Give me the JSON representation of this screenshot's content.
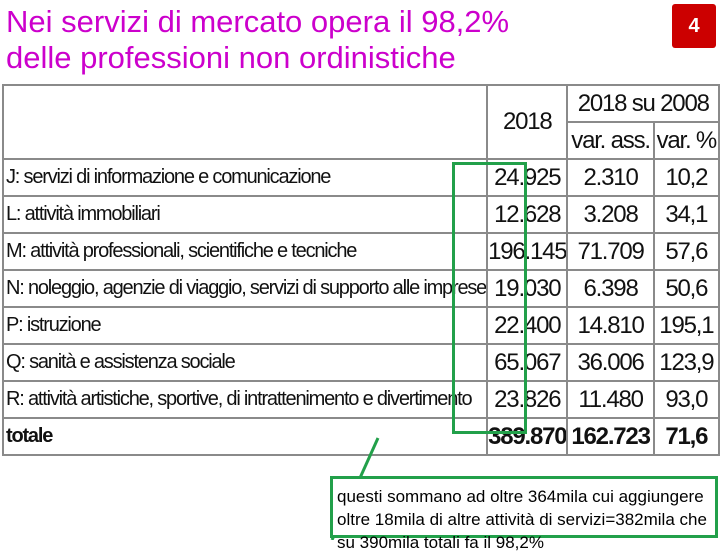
{
  "header": {
    "title_line1": "Nei servizi di mercato opera il 98,2%",
    "title_line2": "delle professioni non ordinistiche",
    "page_number": "4"
  },
  "table": {
    "col_year": "2018",
    "col_group": "2018 su 2008",
    "col_abs": "var. ass.",
    "col_pct": "var. %",
    "rows": [
      {
        "label": "J: servizi di informazione e comunicazione",
        "v2018": "24.925",
        "abs": "2.310",
        "pct": "10,2"
      },
      {
        "label": "L: attività immobiliari",
        "v2018": "12.628",
        "abs": "3.208",
        "pct": "34,1"
      },
      {
        "label": "M: attività professionali, scientifiche e tecniche",
        "v2018": "196.145",
        "abs": "71.709",
        "pct": "57,6"
      },
      {
        "label": "N: noleggio, agenzie di viaggio, servizi di supporto alle imprese",
        "v2018": "19.030",
        "abs": "6.398",
        "pct": "50,6"
      },
      {
        "label": "P: istruzione",
        "v2018": "22.400",
        "abs": "14.810",
        "pct": "195,1"
      },
      {
        "label": "Q: sanità e assistenza sociale",
        "v2018": "65.067",
        "abs": "36.006",
        "pct": "123,9"
      },
      {
        "label": "R: attività artistiche, sportive, di intrattenimento e divertimento",
        "v2018": "23.826",
        "abs": "11.480",
        "pct": "93,0"
      }
    ],
    "total": {
      "label": "totale",
      "v2018": "389.870",
      "abs": "162.723",
      "pct": "71,6"
    }
  },
  "note": {
    "text": "questi sommano ad oltre 364mila cui aggiungere oltre 18mila di altre attività di servizi=382mila che su 390mila totali fa il 98,2%"
  },
  "colors": {
    "title": "#cc00cc",
    "badge": "#cc0000",
    "highlight": "#22a04a"
  }
}
